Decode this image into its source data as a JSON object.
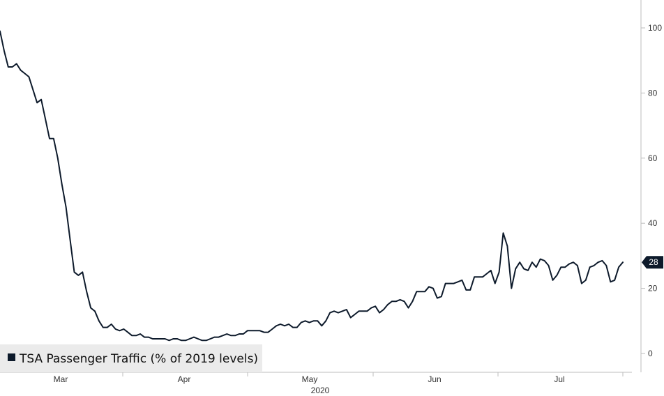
{
  "chart_data": {
    "type": "line",
    "title": "",
    "xlabel": "2020",
    "ylabel": "",
    "x_tick_labels": [
      "Mar",
      "Apr",
      "May",
      "Jun",
      "Jul"
    ],
    "y_ticks": [
      0,
      20,
      40,
      60,
      80,
      100
    ],
    "y_tick_labels": [
      "0",
      "20",
      "40",
      "60",
      "80",
      "100"
    ],
    "ylim": [
      -3,
      108
    ],
    "grid": false,
    "legend_position": "bottom-left",
    "last_value_label": "28",
    "series": [
      {
        "name": "TSA Passenger Traffic (% of 2019 levels)",
        "color": "#0d1a2b",
        "start_date": "2020-03-01",
        "values": [
          99,
          93,
          88,
          88,
          89,
          87,
          86,
          85,
          81,
          77,
          78,
          72,
          66,
          66,
          60,
          52,
          45,
          35,
          25,
          24,
          25,
          19,
          14,
          13,
          10,
          8,
          8,
          9,
          7.5,
          7,
          7.5,
          6.5,
          5.5,
          5.5,
          6,
          5,
          5,
          4.5,
          4.5,
          4.5,
          4.5,
          4,
          4.5,
          4.5,
          4,
          4,
          4.5,
          5,
          4.5,
          4,
          4,
          4.5,
          5,
          5,
          5.5,
          6,
          5.5,
          5.5,
          6,
          6,
          7,
          7,
          7,
          7,
          6.5,
          6.5,
          7.5,
          8.5,
          9,
          8.5,
          9,
          8,
          8,
          9.5,
          10,
          9.5,
          10,
          10,
          8.5,
          10,
          12.5,
          13,
          12.5,
          13,
          13.5,
          11,
          12,
          13,
          13,
          13,
          14,
          14.5,
          12.5,
          13.5,
          15,
          16,
          16,
          16.5,
          16,
          14,
          16,
          19,
          19,
          19,
          20.5,
          20,
          17,
          17.5,
          21.5,
          21.5,
          21.5,
          22,
          22.5,
          19.5,
          19.5,
          23.5,
          23.5,
          23.5,
          24.5,
          25.5,
          21.5,
          25,
          37,
          33,
          20,
          26,
          28,
          26,
          25.5,
          28,
          26.5,
          29,
          28.5,
          27,
          22.5,
          24,
          26.5,
          26.5,
          27.5,
          28,
          27,
          21.5,
          22.5,
          26.5,
          27,
          28,
          28.5,
          27,
          22,
          22.5,
          26.5,
          28
        ]
      }
    ]
  }
}
